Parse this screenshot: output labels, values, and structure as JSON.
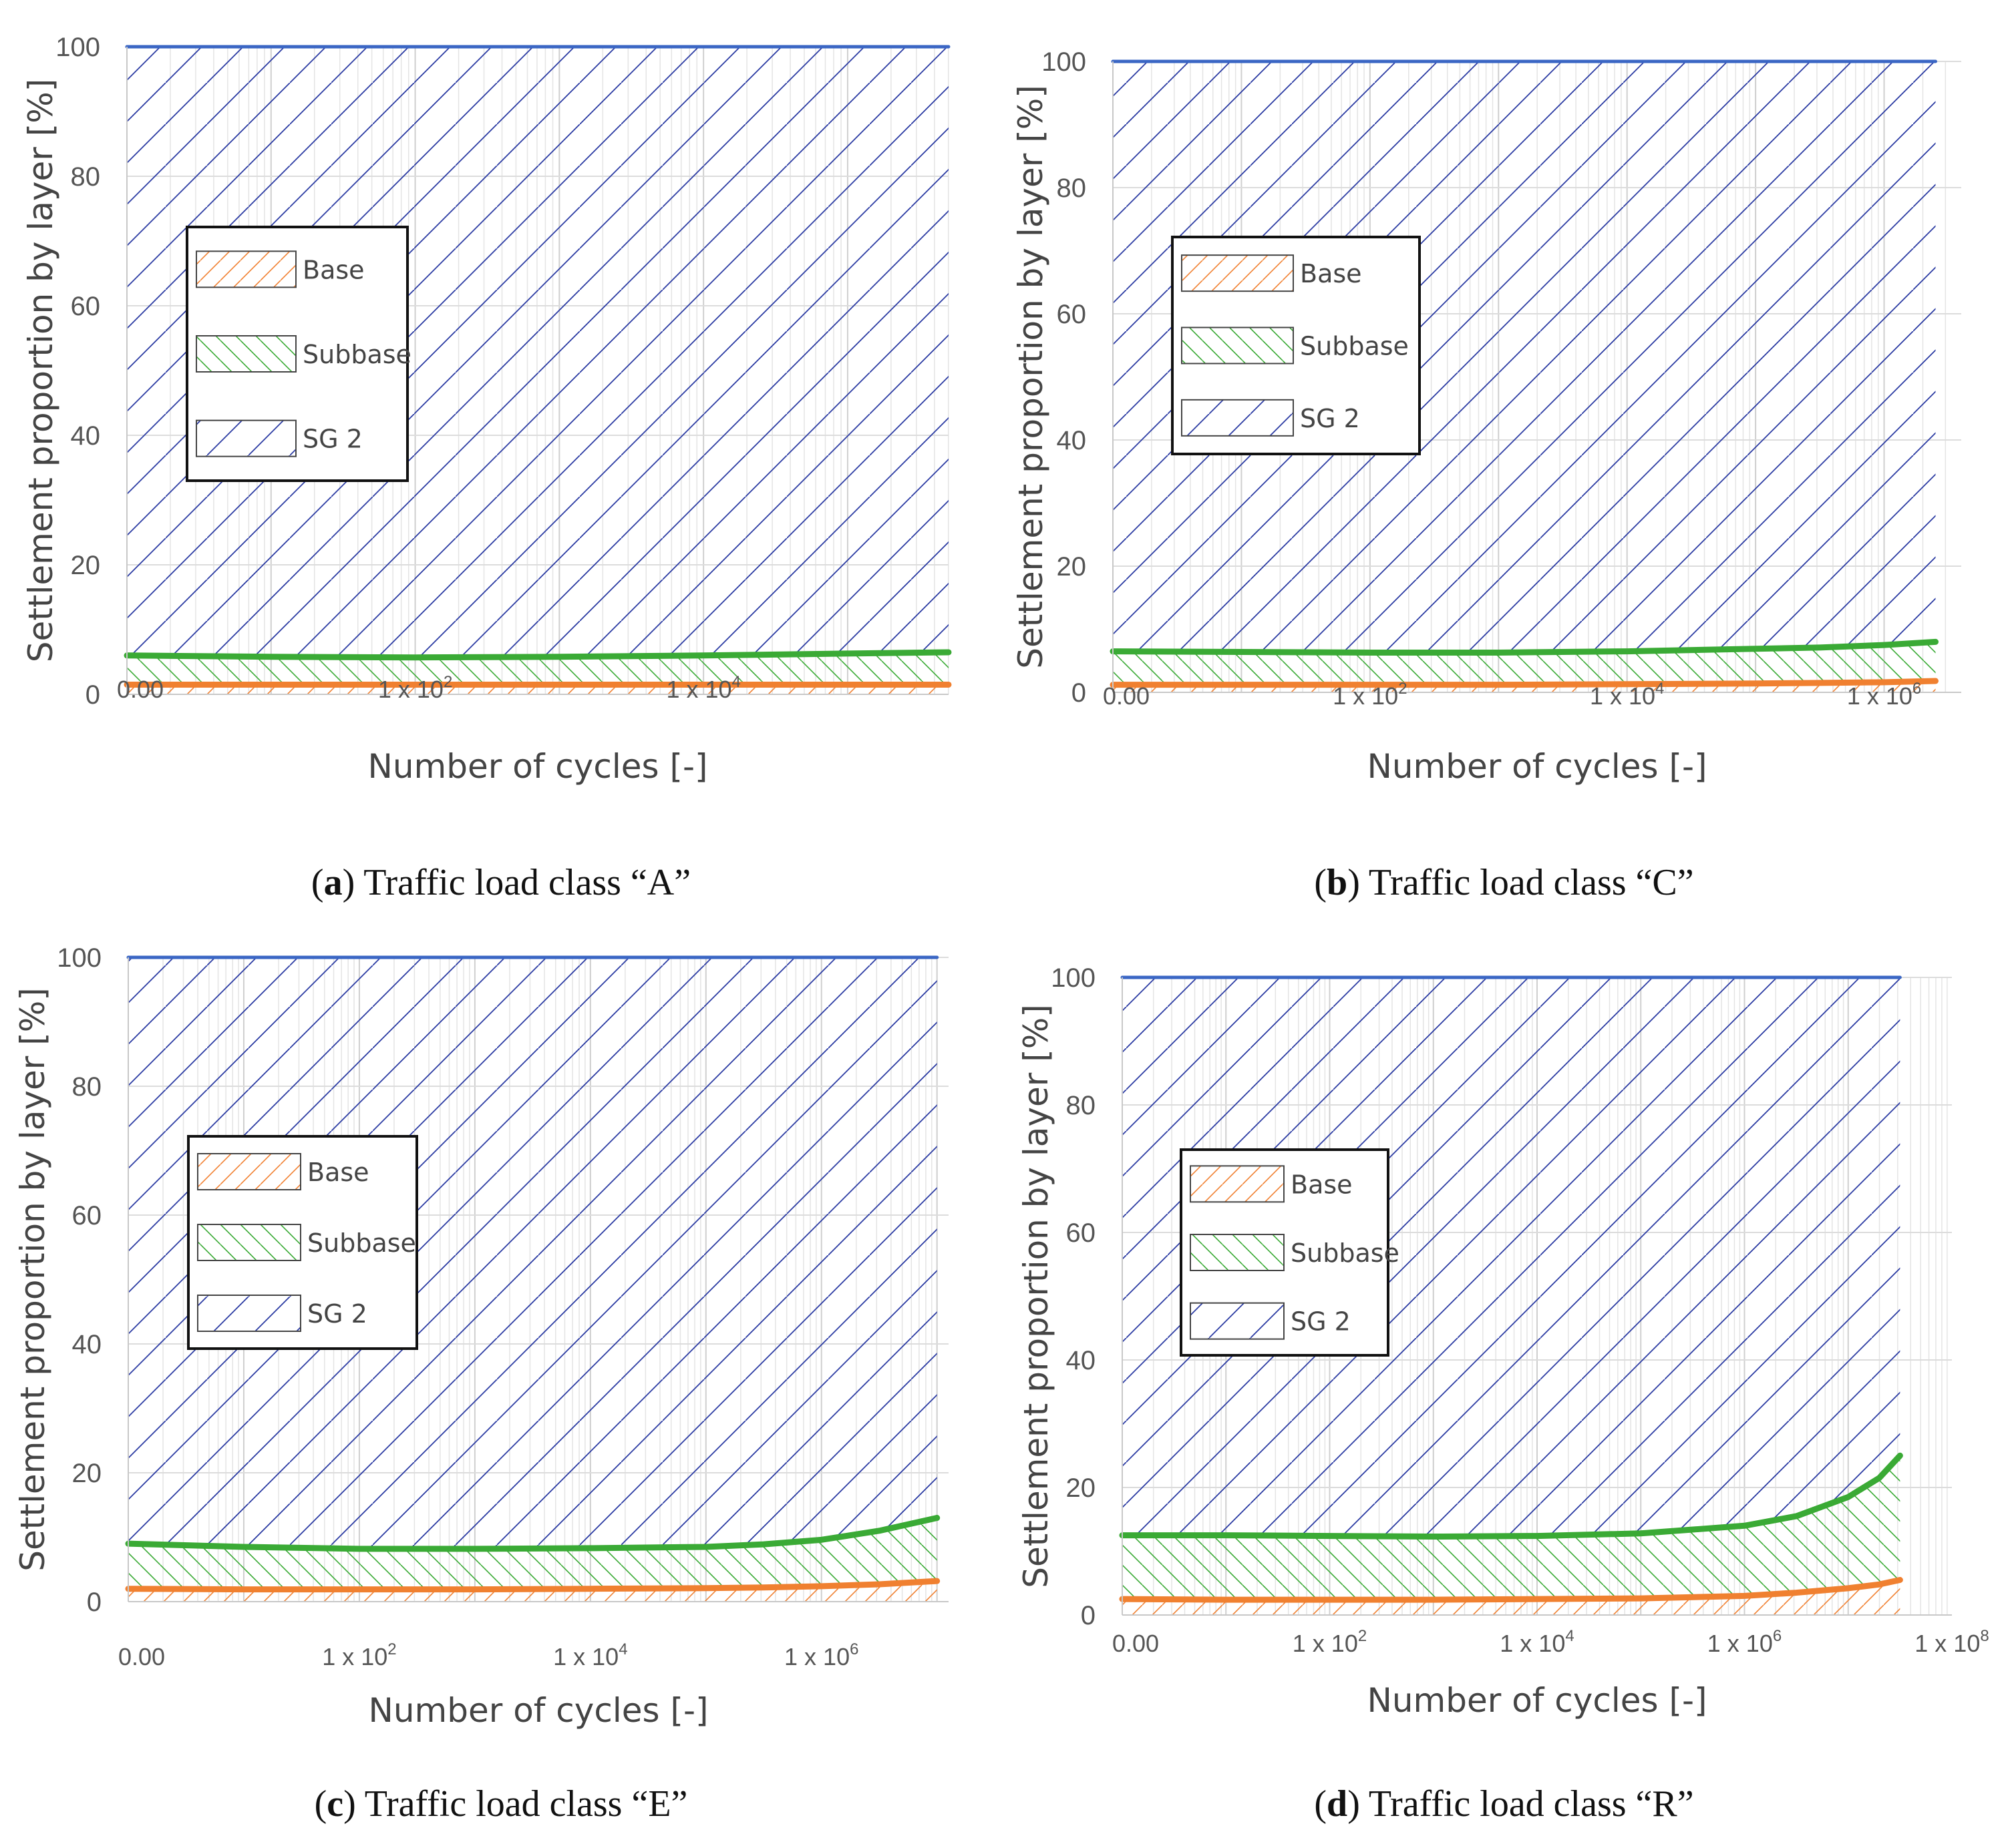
{
  "figure": {
    "panels": [
      {
        "id": "a",
        "caption_letter": "a",
        "caption_text": "Traffic load class “A”",
        "legend": [
          {
            "label": "Base",
            "pattern": "base"
          },
          {
            "label": "Subbase",
            "pattern": "subbase"
          },
          {
            "label": "SG 2",
            "pattern": "sg"
          }
        ],
        "chart_data": {
          "type": "area",
          "title": "",
          "xlabel": "Number of cycles [-]",
          "ylabel": "Settlement proportion by layer [%]",
          "x_scale": "log",
          "xlim": [
            0,
            5.7
          ],
          "ylim": [
            0,
            100
          ],
          "y_ticks": [
            "0",
            "20",
            "40",
            "60",
            "80",
            "100"
          ],
          "x_ticks": [
            {
              "label": "0.00",
              "sup": "",
              "value": 0
            },
            {
              "label": "1 x 10",
              "sup": "2",
              "value": 2
            },
            {
              "label": "1 x 10",
              "sup": "4",
              "value": 4
            }
          ],
          "x_log10": [
            0,
            1,
            2,
            3,
            4,
            5,
            5.7
          ],
          "series": [
            {
              "name": "Base",
              "cumulative": [
                1.5,
                1.5,
                1.5,
                1.5,
                1.5,
                1.5,
                1.5
              ],
              "color": "#f08030"
            },
            {
              "name": "Subbase",
              "cumulative": [
                6.0,
                5.8,
                5.7,
                5.8,
                6.0,
                6.3,
                6.5
              ],
              "color": "#3aaa35"
            },
            {
              "name": "SG 2",
              "cumulative": [
                100,
                100,
                100,
                100,
                100,
                100,
                100
              ],
              "color": "#3a66c4"
            }
          ]
        }
      },
      {
        "id": "b",
        "caption_letter": "b",
        "caption_text": "Traffic load class “C”",
        "legend": [
          {
            "label": "Base",
            "pattern": "base"
          },
          {
            "label": "Subbase",
            "pattern": "subbase"
          },
          {
            "label": "SG 2",
            "pattern": "sg"
          }
        ],
        "chart_data": {
          "type": "area",
          "title": "",
          "xlabel": "Number of cycles [-]",
          "ylabel": "Settlement proportion by layer [%]",
          "x_scale": "log",
          "xlim": [
            0,
            6.6
          ],
          "ylim": [
            0,
            100
          ],
          "y_ticks": [
            "0",
            "20",
            "40",
            "60",
            "80",
            "100"
          ],
          "x_ticks": [
            {
              "label": "0.00",
              "sup": "",
              "value": 0
            },
            {
              "label": "1 x 10",
              "sup": "2",
              "value": 2
            },
            {
              "label": "1 x 10",
              "sup": "4",
              "value": 4
            },
            {
              "label": "1 x 10",
              "sup": "6",
              "value": 6
            }
          ],
          "x_log10": [
            0,
            1,
            2,
            3,
            4,
            5,
            5.5,
            6,
            6.4
          ],
          "series": [
            {
              "name": "Base",
              "cumulative": [
                1.2,
                1.2,
                1.2,
                1.2,
                1.3,
                1.4,
                1.5,
                1.6,
                1.8
              ],
              "color": "#f08030"
            },
            {
              "name": "Subbase",
              "cumulative": [
                6.5,
                6.4,
                6.3,
                6.3,
                6.5,
                6.9,
                7.1,
                7.5,
                8.0
              ],
              "color": "#3aaa35"
            },
            {
              "name": "SG 2",
              "cumulative": [
                100,
                100,
                100,
                100,
                100,
                100,
                100,
                100,
                100
              ],
              "color": "#3a66c4"
            }
          ]
        }
      },
      {
        "id": "c",
        "caption_letter": "c",
        "caption_text": "Traffic load class “E”",
        "legend": [
          {
            "label": "Base",
            "pattern": "base"
          },
          {
            "label": "Subbase",
            "pattern": "subbase"
          },
          {
            "label": "SG 2",
            "pattern": "sg"
          }
        ],
        "chart_data": {
          "type": "area",
          "title": "",
          "xlabel": "Number of cycles [-]",
          "ylabel": "Settlement proportion by layer [%]",
          "x_scale": "log",
          "xlim": [
            0,
            7.1
          ],
          "ylim": [
            0,
            100
          ],
          "y_ticks": [
            "0",
            "20",
            "40",
            "60",
            "80",
            "100"
          ],
          "x_ticks": [
            {
              "label": "0.00",
              "sup": "",
              "value": 0
            },
            {
              "label": "1 x 10",
              "sup": "2",
              "value": 2
            },
            {
              "label": "1 x 10",
              "sup": "4",
              "value": 4
            },
            {
              "label": "1 x 10",
              "sup": "6",
              "value": 6
            }
          ],
          "x_log10": [
            0,
            1,
            2,
            3,
            4,
            5,
            5.5,
            6,
            6.5,
            7.0
          ],
          "series": [
            {
              "name": "Base",
              "cumulative": [
                2.0,
                1.9,
                1.9,
                1.9,
                2.0,
                2.1,
                2.2,
                2.4,
                2.7,
                3.2
              ],
              "color": "#f08030"
            },
            {
              "name": "Subbase",
              "cumulative": [
                9.0,
                8.5,
                8.2,
                8.2,
                8.3,
                8.5,
                8.9,
                9.6,
                11.0,
                13.0
              ],
              "color": "#3aaa35"
            },
            {
              "name": "SG 2",
              "cumulative": [
                100,
                100,
                100,
                100,
                100,
                100,
                100,
                100,
                100,
                100
              ],
              "color": "#3a66c4"
            }
          ]
        }
      },
      {
        "id": "d",
        "caption_letter": "d",
        "caption_text": "Traffic load class “R”",
        "legend": [
          {
            "label": "Base",
            "pattern": "base"
          },
          {
            "label": "Subbase",
            "pattern": "subbase"
          },
          {
            "label": "SG 2",
            "pattern": "sg"
          }
        ],
        "chart_data": {
          "type": "area",
          "title": "",
          "xlabel": "Number of cycles [-]",
          "ylabel": "Settlement proportion by layer [%]",
          "x_scale": "log",
          "xlim": [
            0,
            8
          ],
          "ylim": [
            0,
            100
          ],
          "y_ticks": [
            "0",
            "20",
            "40",
            "60",
            "80",
            "100"
          ],
          "x_ticks": [
            {
              "label": "0.00",
              "sup": "",
              "value": 0
            },
            {
              "label": "1 x 10",
              "sup": "2",
              "value": 2
            },
            {
              "label": "1 x 10",
              "sup": "4",
              "value": 4
            },
            {
              "label": "1 x 10",
              "sup": "6",
              "value": 6
            },
            {
              "label": "1 x 10",
              "sup": "8",
              "value": 8
            }
          ],
          "x_log10": [
            0,
            1,
            2,
            3,
            4,
            5,
            6,
            6.5,
            7.0,
            7.3,
            7.5
          ],
          "series": [
            {
              "name": "Base",
              "cumulative": [
                2.5,
                2.4,
                2.4,
                2.4,
                2.5,
                2.6,
                3.0,
                3.5,
                4.2,
                4.8,
                5.5
              ],
              "color": "#f08030"
            },
            {
              "name": "Subbase",
              "cumulative": [
                12.5,
                12.5,
                12.4,
                12.3,
                12.4,
                12.8,
                14.0,
                15.5,
                18.5,
                21.5,
                25.0
              ],
              "color": "#3aaa35"
            },
            {
              "name": "SG 2",
              "cumulative": [
                100,
                100,
                100,
                100,
                100,
                100,
                100,
                100,
                100,
                100,
                100
              ],
              "color": "#3a66c4"
            }
          ]
        }
      }
    ]
  }
}
